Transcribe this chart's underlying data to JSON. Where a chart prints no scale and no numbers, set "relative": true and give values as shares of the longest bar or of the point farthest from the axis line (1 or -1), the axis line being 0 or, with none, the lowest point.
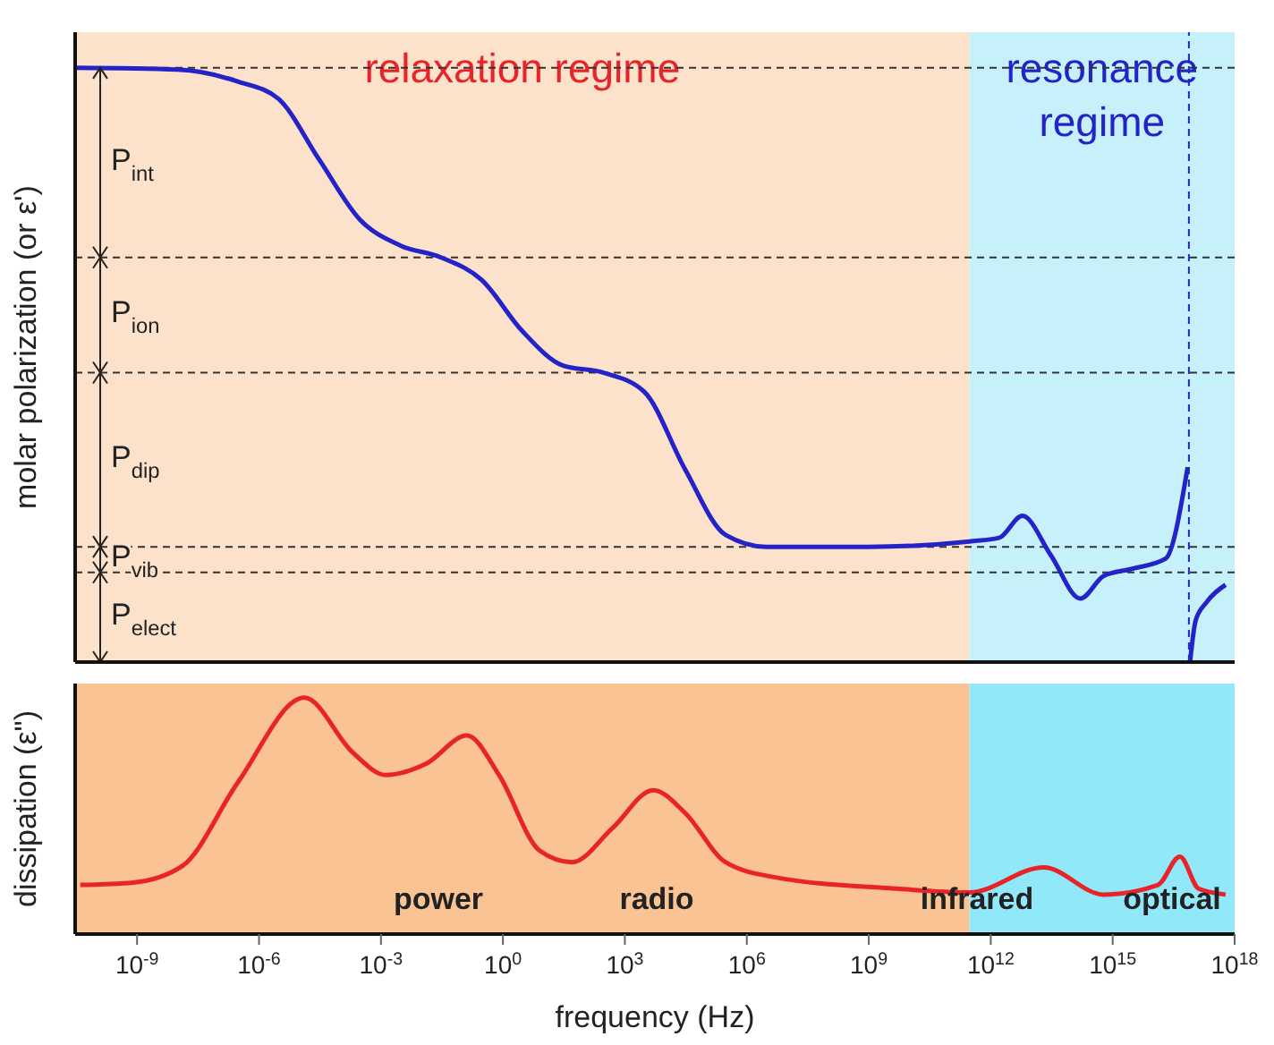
{
  "chart_data": [
    {
      "type": "line",
      "relative": true,
      "ylabel": "molar polarization (or ε')",
      "xlim": [
        3e-11,
        1e+18
      ],
      "log": "x",
      "tick_labels": false,
      "series": [
        {
          "color": "#2323c8",
          "x": [
            3e-11,
            1e-08,
            3e-07,
            3e-06,
            3e-05,
            0.0003,
            0.003,
            0.03,
            0.3,
            3,
            30,
            300,
            3000,
            30000,
            300000.0,
            3000000.0,
            1000000000.0,
            300000000000.0,
            1600000000000.0,
            6000000000000.0,
            30000000000000.0,
            160000000000000.0,
            600000000000000.0,
            3000000000000000.0,
            2e+16,
            7e+16
          ],
          "values": [
            1.0,
            0.997,
            0.977,
            0.948,
            0.846,
            0.745,
            0.701,
            0.681,
            0.643,
            0.557,
            0.499,
            0.487,
            0.455,
            0.325,
            0.214,
            0.194,
            0.194,
            0.203,
            0.209,
            0.246,
            0.18,
            0.107,
            0.145,
            0.157,
            0.174,
            0.328
          ]
        },
        {
          "color": "#2323c8",
          "x": [
            8e+16,
            1.1e+17,
            2e+17,
            6e+17
          ],
          "values": [
            0,
            0.07,
            0.1,
            0.13
          ]
        }
      ],
      "ref_lines": [
        {
          "axis": "y",
          "value": 1.0,
          "color": "#333333",
          "line_style": "dashed"
        },
        {
          "axis": "y",
          "value": 0.681,
          "color": "#333333",
          "line_style": "dashed"
        },
        {
          "axis": "y",
          "value": 0.487,
          "color": "#333333",
          "line_style": "dashed"
        },
        {
          "axis": "y",
          "value": 0.194,
          "color": "#333333",
          "line_style": "dashed"
        },
        {
          "axis": "y",
          "value": 0.151,
          "color": "#333333",
          "line_style": "dashed"
        },
        {
          "axis": "x",
          "value": 7.5e+16,
          "color": "#2323c8",
          "line_style": "dashed"
        }
      ],
      "bands": [
        {
          "axis": "x",
          "from": 3e-11,
          "to": 300000000000.0,
          "label": "relaxation regime",
          "color": "#fde2cb"
        },
        {
          "axis": "x",
          "from": 300000000000.0,
          "to": 1e+18,
          "label": "resonance regime",
          "color": "#c6f1fb"
        }
      ],
      "annotations": [
        "P$_{int}$",
        "P$_{ion}$",
        "P$_{dip}$",
        "P$_{vib}$",
        "P$_{elect}$"
      ]
    },
    {
      "type": "line",
      "relative": true,
      "ylabel": "dissipation (ε\")",
      "xlabel": "frequency (Hz)",
      "xlim": [
        3e-11,
        1e+18
      ],
      "log": "x",
      "tick_labels": "x",
      "xticks": [
        {
          "value": 1e-09,
          "label": "10$^{-9}$"
        },
        {
          "value": 1e-06,
          "label": "10$^{-6}$"
        },
        {
          "value": 0.001,
          "label": "10$^{-3}$"
        },
        {
          "value": 1,
          "label": "10$^{0}$"
        },
        {
          "value": 1000.0,
          "label": "10$^{3}$"
        },
        {
          "value": 1000000.0,
          "label": "10$^{6}$"
        },
        {
          "value": 1000000000.0,
          "label": "10$^{9}$"
        },
        {
          "value": 1000000000000.0,
          "label": "10$^{12}$"
        },
        {
          "value": 1000000000000000.0,
          "label": "10$^{15}$"
        },
        {
          "value": 1e+18,
          "label": "10$^{18}$"
        }
      ],
      "series": [
        {
          "color": "#e8242a",
          "x": [
            4e-11,
            8e-10,
            1.3e-08,
            3e-07,
            1.3e-05,
            0.0002,
            0.0013,
            0.013,
            0.13,
            0.8,
            8,
            50,
            500,
            5000,
            30000,
            300000.0,
            5000000.0,
            5000000000.0,
            300000000000.0,
            20000000000000.0,
            600000000000000.0,
            1.3e+16,
            4.5e+16,
            1.3e+17,
            6e+17
          ],
          "values": [
            0.208,
            0.218,
            0.288,
            0.641,
            1.0,
            0.769,
            0.673,
            0.721,
            0.84,
            0.673,
            0.353,
            0.304,
            0.449,
            0.609,
            0.513,
            0.304,
            0.24,
            0.192,
            0.176,
            0.282,
            0.167,
            0.208,
            0.327,
            0.192,
            0.167
          ]
        }
      ],
      "bands": [
        {
          "axis": "x",
          "from": 3e-11,
          "to": 300000000000.0,
          "color": "#f9c393"
        },
        {
          "axis": "x",
          "from": 300000000000.0,
          "to": 1e+18,
          "color": "#90e8f9"
        }
      ],
      "annotations": [
        "power",
        "radio",
        "infrared",
        "optical"
      ]
    }
  ]
}
